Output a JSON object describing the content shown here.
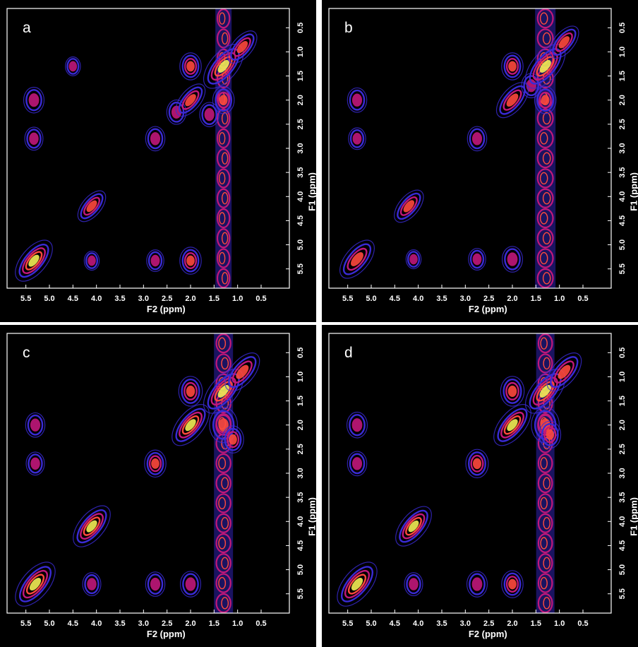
{
  "panels": [
    {
      "id": "a",
      "label": "a",
      "show_y_label": true
    },
    {
      "id": "b",
      "label": "b",
      "show_y_label": true
    },
    {
      "id": "c",
      "label": "c",
      "show_y_label": true
    },
    {
      "id": "d",
      "label": "d",
      "show_y_label": true
    }
  ],
  "xlabel": "F2 (ppm)",
  "ylabel": "F1 (ppm)",
  "x_ticks": [
    "5.5",
    "5.0",
    "4.5",
    "4.0",
    "3.5",
    "3.0",
    "2.5",
    "2.0",
    "1.5",
    "1.0",
    "0.5"
  ],
  "y_ticks": [
    "0.5",
    "1.0",
    "1.5",
    "2.0",
    "2.5",
    "3.0",
    "3.5",
    "4.0",
    "4.5",
    "5.0",
    "5.5"
  ],
  "colors": {
    "background": "#000000",
    "low": "#3a2bd6",
    "mid": "#c0187a",
    "high": "#ff4a3d",
    "peak": "#f2ee55",
    "axis": "#ffffff"
  },
  "chart_data": [
    {
      "type": "contour",
      "panel": "a",
      "xlabel": "F2 (ppm)",
      "ylabel": "F1 (ppm)",
      "xlim": [
        5.9,
        -0.1
      ],
      "ylim": [
        0.1,
        5.9
      ],
      "diagonal_peaks": [
        [
          5.33,
          5.33,
          0.9
        ],
        [
          4.1,
          4.2,
          0.55
        ],
        [
          2.0,
          2.0,
          0.6
        ],
        [
          1.3,
          1.3,
          1.0
        ],
        [
          0.9,
          0.9,
          0.6
        ]
      ],
      "cross_peaks": [
        [
          5.33,
          2.0,
          0.45
        ],
        [
          5.33,
          2.8,
          0.35
        ],
        [
          2.0,
          5.33,
          0.5
        ],
        [
          2.75,
          5.33,
          0.3
        ],
        [
          4.1,
          5.33,
          0.2
        ],
        [
          2.75,
          2.8,
          0.4
        ],
        [
          1.3,
          2.0,
          0.5
        ],
        [
          2.0,
          1.3,
          0.5
        ],
        [
          2.3,
          2.25,
          0.4
        ],
        [
          1.6,
          2.3,
          0.4
        ],
        [
          4.5,
          1.3,
          0.2
        ]
      ],
      "ridge_x": 1.3,
      "ridge_strength": 0.55
    },
    {
      "type": "contour",
      "panel": "b",
      "xlabel": "F2 (ppm)",
      "ylabel": "F1 (ppm)",
      "xlim": [
        5.9,
        -0.1
      ],
      "ylim": [
        0.1,
        5.9
      ],
      "diagonal_peaks": [
        [
          5.3,
          5.3,
          0.8
        ],
        [
          4.2,
          4.2,
          0.6
        ],
        [
          2.0,
          2.0,
          0.7
        ],
        [
          1.3,
          1.3,
          1.0
        ],
        [
          0.9,
          0.8,
          0.6
        ]
      ],
      "cross_peaks": [
        [
          5.3,
          2.0,
          0.4
        ],
        [
          5.3,
          2.8,
          0.3
        ],
        [
          2.0,
          5.3,
          0.45
        ],
        [
          2.75,
          5.3,
          0.3
        ],
        [
          4.1,
          5.3,
          0.2
        ],
        [
          2.75,
          2.8,
          0.4
        ],
        [
          1.3,
          2.0,
          0.5
        ],
        [
          2.0,
          1.3,
          0.5
        ],
        [
          1.6,
          1.7,
          0.4
        ]
      ],
      "ridge_x": 1.3,
      "ridge_strength": 0.85
    },
    {
      "type": "contour",
      "panel": "c",
      "xlabel": "F2 (ppm)",
      "ylabel": "F1 (ppm)",
      "xlim": [
        5.9,
        -0.1
      ],
      "ylim": [
        0.1,
        5.9
      ],
      "diagonal_peaks": [
        [
          5.3,
          5.3,
          1.0
        ],
        [
          4.1,
          4.1,
          0.9
        ],
        [
          2.0,
          2.0,
          0.9
        ],
        [
          1.3,
          1.3,
          1.0
        ],
        [
          0.9,
          0.9,
          0.8
        ]
      ],
      "cross_peaks": [
        [
          5.3,
          2.0,
          0.4
        ],
        [
          5.3,
          2.8,
          0.35
        ],
        [
          2.0,
          5.3,
          0.45
        ],
        [
          2.75,
          5.3,
          0.4
        ],
        [
          4.1,
          5.3,
          0.35
        ],
        [
          2.75,
          2.8,
          0.5
        ],
        [
          1.3,
          2.0,
          0.8
        ],
        [
          2.0,
          1.3,
          0.6
        ],
        [
          1.1,
          2.3,
          0.5
        ]
      ],
      "ridge_x": 1.3,
      "ridge_strength": 0.75
    },
    {
      "type": "contour",
      "panel": "d",
      "xlabel": "F2 (ppm)",
      "ylabel": "F1 (ppm)",
      "xlim": [
        5.9,
        -0.1
      ],
      "ylim": [
        0.1,
        5.9
      ],
      "diagonal_peaks": [
        [
          5.3,
          5.3,
          1.0
        ],
        [
          4.1,
          4.1,
          0.85
        ],
        [
          2.0,
          2.0,
          0.9
        ],
        [
          1.3,
          1.3,
          1.0
        ],
        [
          0.9,
          0.9,
          0.8
        ]
      ],
      "cross_peaks": [
        [
          5.3,
          2.0,
          0.45
        ],
        [
          5.3,
          2.8,
          0.4
        ],
        [
          2.0,
          5.3,
          0.5
        ],
        [
          2.75,
          5.3,
          0.45
        ],
        [
          4.1,
          5.3,
          0.35
        ],
        [
          2.75,
          2.8,
          0.55
        ],
        [
          1.3,
          2.0,
          0.8
        ],
        [
          2.0,
          1.3,
          0.6
        ],
        [
          1.2,
          2.2,
          0.5
        ]
      ],
      "ridge_x": 1.3,
      "ridge_strength": 0.7
    }
  ]
}
